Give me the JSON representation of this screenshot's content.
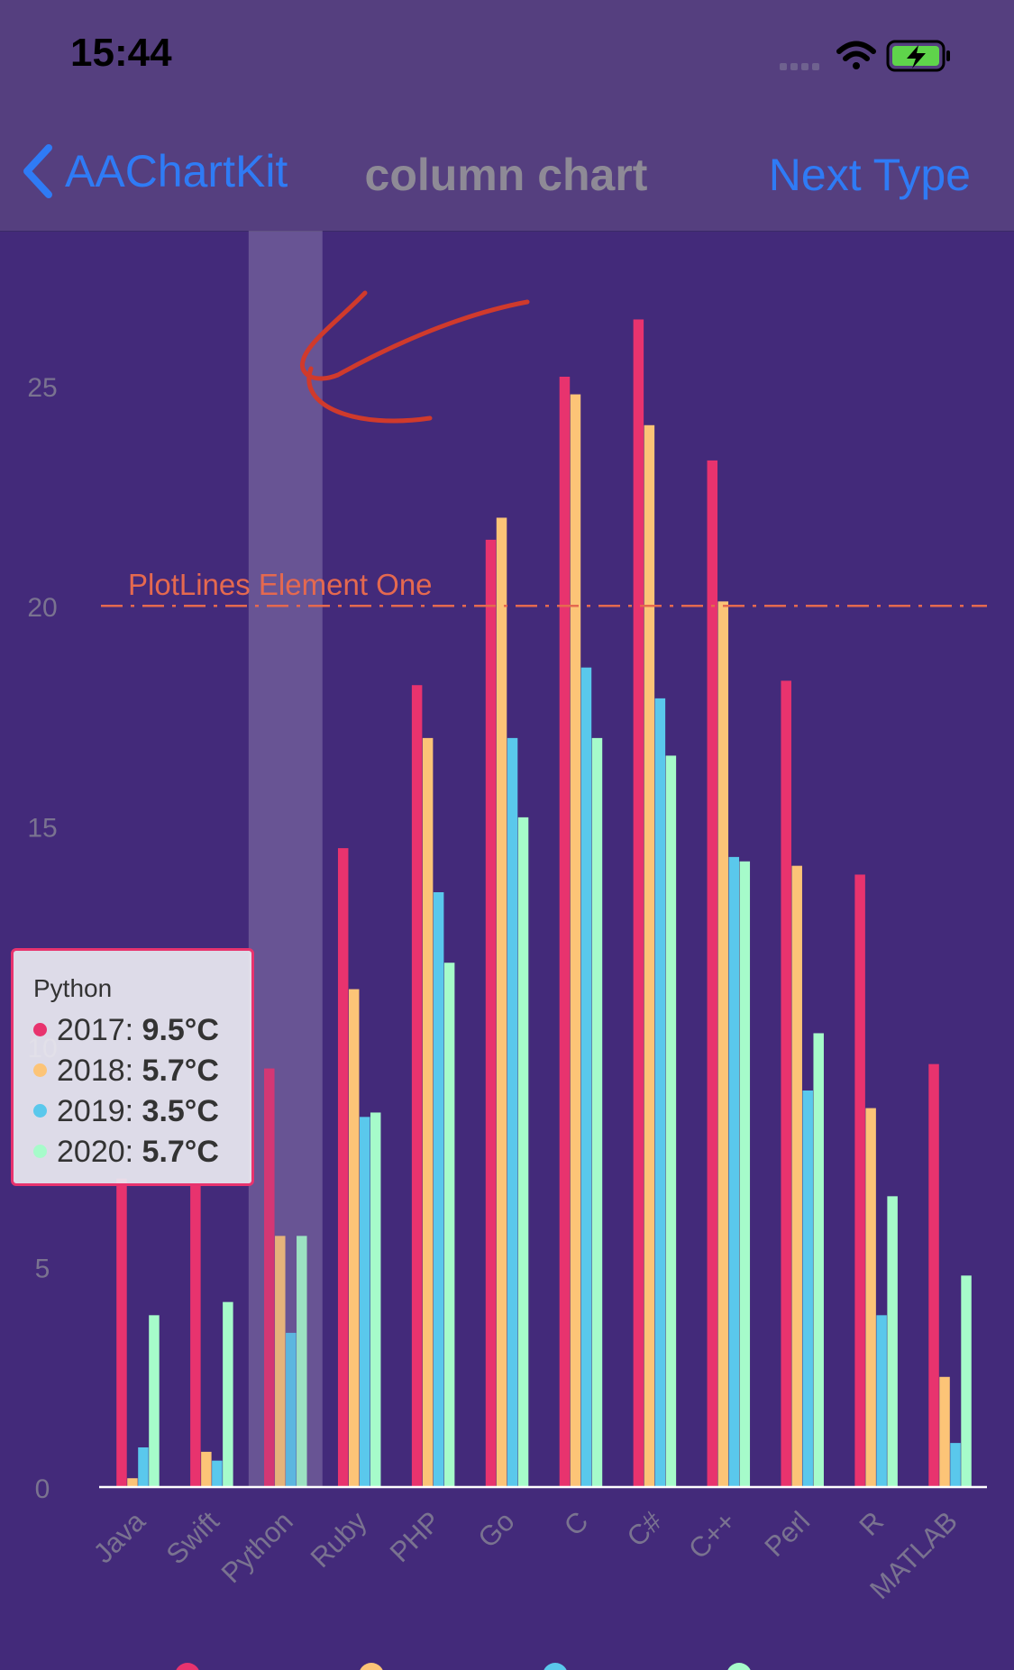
{
  "status_bar": {
    "time": "15:44"
  },
  "nav": {
    "back_label": "AAChartKit",
    "title": "column chart",
    "next_label": "Next Type"
  },
  "chart_data": {
    "type": "bar",
    "title": "",
    "xlabel": "",
    "ylabel": "",
    "ylim": [
      0,
      27.9
    ],
    "yticks": [
      0,
      5,
      10,
      15,
      20,
      25
    ],
    "grid": false,
    "categories": [
      "Java",
      "Swift",
      "Python",
      "Ruby",
      "PHP",
      "Go",
      "C",
      "C#",
      "C++",
      "Perl",
      "R",
      "MATLAB"
    ],
    "series": [
      {
        "name": "2017",
        "color": "#e8336e",
        "values": [
          7.0,
          6.9,
          9.5,
          14.5,
          18.2,
          21.5,
          25.2,
          26.5,
          23.3,
          18.3,
          13.9,
          9.6
        ]
      },
      {
        "name": "2018",
        "color": "#fcc477",
        "values": [
          0.2,
          0.8,
          5.7,
          11.3,
          17.0,
          22.0,
          24.8,
          24.1,
          20.1,
          14.1,
          8.6,
          2.5
        ]
      },
      {
        "name": "2019",
        "color": "#5ac8ec",
        "values": [
          0.9,
          0.6,
          3.5,
          8.4,
          13.5,
          17.0,
          18.6,
          17.9,
          14.3,
          9.0,
          3.9,
          1.0
        ]
      },
      {
        "name": "2020",
        "color": "#a6fbca",
        "values": [
          3.9,
          4.2,
          5.7,
          8.5,
          11.9,
          15.2,
          17.0,
          16.6,
          14.2,
          10.3,
          6.6,
          4.8
        ]
      }
    ],
    "plot_line": {
      "value": 20,
      "label": "PlotLines Element One",
      "color": "#e5694f"
    },
    "highlighted_category": "Python",
    "tooltip": {
      "title": "Python",
      "rows": [
        {
          "label": "2017: ",
          "value": "9.5°C",
          "color": "#e8336e"
        },
        {
          "label": "2018: ",
          "value": "5.7°C",
          "color": "#fcc477"
        },
        {
          "label": "2019: ",
          "value": "3.5°C",
          "color": "#5ac8ec"
        },
        {
          "label": "2020: ",
          "value": "5.7°C",
          "color": "#a6fbca"
        }
      ]
    }
  }
}
